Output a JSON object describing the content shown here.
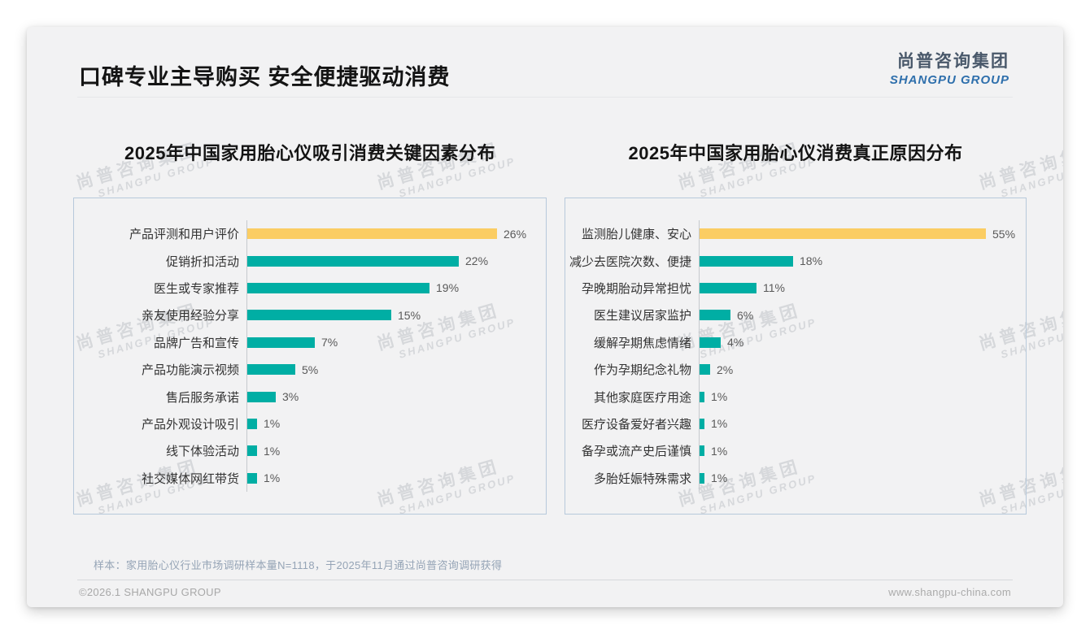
{
  "header": {
    "title": "口碑专业主导购买 安全便捷驱动消费",
    "logo_cn": "尚普咨询集团",
    "logo_en": "SHANGPU GROUP"
  },
  "watermark": {
    "cn": "尚普咨询集团",
    "en": "SHANGPU GROUP"
  },
  "colors": {
    "bar_teal": "#00AEA4",
    "bar_highlight_yellow": "#FBCD63"
  },
  "chart_data": [
    {
      "type": "bar",
      "orientation": "horizontal",
      "title": "2025年中国家用胎心仪吸引消费关键因素分布",
      "unit": "%",
      "highlight_index": 0,
      "categories": [
        "产品评测和用户评价",
        "促销折扣活动",
        "医生或专家推荐",
        "亲友使用经验分享",
        "品牌广告和宣传",
        "产品功能演示视频",
        "售后服务承诺",
        "产品外观设计吸引",
        "线下体验活动",
        "社交媒体网红带货"
      ],
      "values": [
        26,
        22,
        19,
        15,
        7,
        5,
        3,
        1,
        1,
        1
      ],
      "value_labels": [
        "26%",
        "22%",
        "19%",
        "15%",
        "7%",
        "5%",
        "3%",
        "1%",
        "1%",
        "1%"
      ]
    },
    {
      "type": "bar",
      "orientation": "horizontal",
      "title": "2025年中国家用胎心仪消费真正原因分布",
      "unit": "%",
      "highlight_index": 0,
      "categories": [
        "监测胎儿健康、安心",
        "减少去医院次数、便捷",
        "孕晚期胎动异常担忧",
        "医生建议居家监护",
        "缓解孕期焦虑情绪",
        "作为孕期纪念礼物",
        "其他家庭医疗用途",
        "医疗设备爱好者兴趣",
        "备孕或流产史后谨慎",
        "多胎妊娠特殊需求"
      ],
      "values": [
        55,
        18,
        11,
        6,
        4,
        2,
        1,
        1,
        1,
        1
      ],
      "value_labels": [
        "55%",
        "18%",
        "11%",
        "6%",
        "4%",
        "2%",
        "1%",
        "1%",
        "1%",
        "1%"
      ]
    }
  ],
  "footnote": "样本：家用胎心仪行业市场调研样本量N=1118，于2025年11月通过尚普咨询调研获得",
  "footer": {
    "left": "©2026.1 SHANGPU GROUP",
    "right": "www.shangpu-china.com"
  }
}
